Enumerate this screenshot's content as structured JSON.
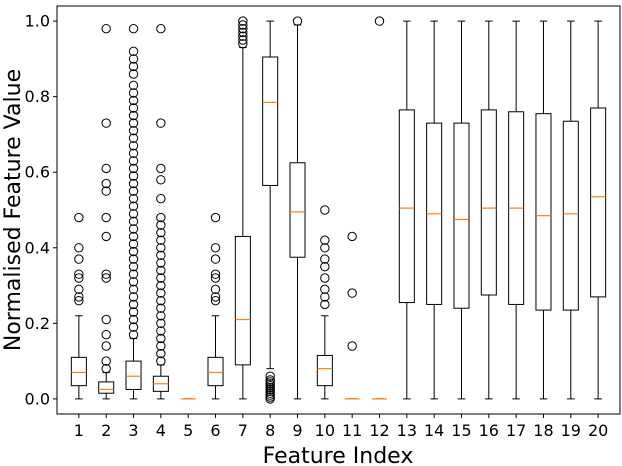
{
  "chart_data": {
    "type": "box",
    "xlabel": "Feature Index",
    "ylabel": "Normalised Feature Value",
    "ylim": [
      -0.04,
      1.04
    ],
    "yticks": [
      0.0,
      0.2,
      0.4,
      0.6,
      0.8,
      1.0
    ],
    "ytick_labels": [
      "0.0",
      "0.2",
      "0.4",
      "0.6",
      "0.8",
      "1.0"
    ],
    "categories": [
      "1",
      "2",
      "3",
      "4",
      "5",
      "6",
      "7",
      "8",
      "9",
      "10",
      "11",
      "12",
      "13",
      "14",
      "15",
      "16",
      "17",
      "18",
      "19",
      "20"
    ],
    "colors": {
      "box": "#000000",
      "median": "#ff7f0e",
      "flier": "#000000"
    },
    "boxes": [
      {
        "whislo": 0.0,
        "q1": 0.035,
        "med": 0.07,
        "q3": 0.11,
        "whishi": 0.22,
        "fliers": [
          0.26,
          0.27,
          0.29,
          0.32,
          0.33,
          0.37,
          0.4,
          0.48
        ]
      },
      {
        "whislo": 0.0,
        "q1": 0.015,
        "med": 0.025,
        "q3": 0.045,
        "whishi": 0.07,
        "fliers": [
          0.08,
          0.1,
          0.14,
          0.17,
          0.21,
          0.32,
          0.33,
          0.43,
          0.48,
          0.55,
          0.57,
          0.61,
          0.73,
          0.98
        ]
      },
      {
        "whislo": 0.0,
        "q1": 0.025,
        "med": 0.06,
        "q3": 0.1,
        "whishi": 0.16,
        "fliers": [
          0.17,
          0.19,
          0.21,
          0.23,
          0.25,
          0.27,
          0.29,
          0.31,
          0.33,
          0.35,
          0.37,
          0.39,
          0.41,
          0.43,
          0.45,
          0.47,
          0.49,
          0.51,
          0.53,
          0.55,
          0.57,
          0.59,
          0.61,
          0.63,
          0.65,
          0.67,
          0.69,
          0.71,
          0.73,
          0.75,
          0.77,
          0.79,
          0.81,
          0.83,
          0.86,
          0.88,
          0.9,
          0.92,
          0.98
        ]
      },
      {
        "whislo": 0.0,
        "q1": 0.02,
        "med": 0.04,
        "q3": 0.06,
        "whishi": 0.09,
        "fliers": [
          0.1,
          0.12,
          0.14,
          0.16,
          0.18,
          0.2,
          0.22,
          0.24,
          0.26,
          0.28,
          0.3,
          0.32,
          0.34,
          0.36,
          0.38,
          0.4,
          0.42,
          0.44,
          0.46,
          0.48,
          0.53,
          0.58,
          0.61,
          0.73,
          0.98
        ]
      },
      {
        "whislo": 0.0,
        "q1": 0.0,
        "med": 0.0,
        "q3": 0.0,
        "whishi": 0.0,
        "fliers": []
      },
      {
        "whislo": 0.0,
        "q1": 0.035,
        "med": 0.07,
        "q3": 0.11,
        "whishi": 0.22,
        "fliers": [
          0.26,
          0.27,
          0.29,
          0.32,
          0.33,
          0.37,
          0.4,
          0.48
        ]
      },
      {
        "whislo": 0.0,
        "q1": 0.09,
        "med": 0.21,
        "q3": 0.43,
        "whishi": 0.93,
        "fliers": [
          0.94,
          0.95,
          0.96,
          0.97,
          0.98,
          0.99,
          1.0
        ]
      },
      {
        "whislo": 0.08,
        "q1": 0.565,
        "med": 0.785,
        "q3": 0.905,
        "whishi": 1.0,
        "fliers": [
          0.0,
          0.005,
          0.01,
          0.015,
          0.02,
          0.025,
          0.03,
          0.035,
          0.04,
          0.045,
          0.05,
          0.06
        ]
      },
      {
        "whislo": 0.0,
        "q1": 0.375,
        "med": 0.495,
        "q3": 0.625,
        "whishi": 0.99,
        "fliers": [
          1.0
        ]
      },
      {
        "whislo": 0.0,
        "q1": 0.035,
        "med": 0.08,
        "q3": 0.115,
        "whishi": 0.22,
        "fliers": [
          0.25,
          0.27,
          0.29,
          0.32,
          0.35,
          0.37,
          0.4,
          0.42,
          0.5
        ]
      },
      {
        "whislo": 0.0,
        "q1": 0.0,
        "med": 0.0,
        "q3": 0.0,
        "whishi": 0.0,
        "fliers": [
          0.14,
          0.28,
          0.43
        ]
      },
      {
        "whislo": 0.0,
        "q1": 0.0,
        "med": 0.0,
        "q3": 0.0,
        "whishi": 0.0,
        "fliers": [
          1.0
        ]
      },
      {
        "whislo": 0.0,
        "q1": 0.255,
        "med": 0.505,
        "q3": 0.765,
        "whishi": 1.0,
        "fliers": []
      },
      {
        "whislo": 0.0,
        "q1": 0.25,
        "med": 0.49,
        "q3": 0.73,
        "whishi": 1.0,
        "fliers": []
      },
      {
        "whislo": 0.0,
        "q1": 0.24,
        "med": 0.475,
        "q3": 0.73,
        "whishi": 1.0,
        "fliers": []
      },
      {
        "whislo": 0.0,
        "q1": 0.275,
        "med": 0.505,
        "q3": 0.765,
        "whishi": 1.0,
        "fliers": []
      },
      {
        "whislo": 0.0,
        "q1": 0.25,
        "med": 0.505,
        "q3": 0.76,
        "whishi": 1.0,
        "fliers": []
      },
      {
        "whislo": 0.0,
        "q1": 0.235,
        "med": 0.485,
        "q3": 0.755,
        "whishi": 1.0,
        "fliers": []
      },
      {
        "whislo": 0.0,
        "q1": 0.235,
        "med": 0.49,
        "q3": 0.735,
        "whishi": 1.0,
        "fliers": []
      },
      {
        "whislo": 0.0,
        "q1": 0.27,
        "med": 0.535,
        "q3": 0.77,
        "whishi": 1.0,
        "fliers": []
      }
    ]
  }
}
